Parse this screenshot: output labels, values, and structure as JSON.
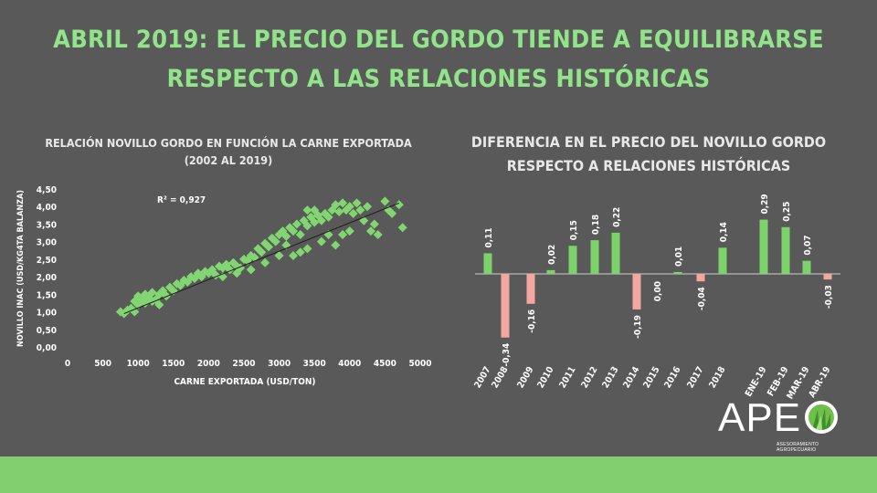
{
  "slide": {
    "title_line1": "ABRIL 2019: EL PRECIO DEL GORDO TIENDE A EQUILIBRARSE",
    "title_line2": "RESPECTO A LAS RELACIONES HISTÓRICAS"
  },
  "logo": {
    "text": "APE",
    "subtitle": "ASESORAMIENTO AGROPECUARIO"
  },
  "colors": {
    "title": "#92e48a",
    "positive": "#7cd36a",
    "negative": "#f4a6a0",
    "footer": "#82cf6f"
  },
  "chart_data": [
    {
      "type": "scatter",
      "title": "RELACIÓN NOVILLO GORDO EN FUNCIÓN LA CARNE EXPORTADA",
      "subtitle": "(2002 AL 2019)",
      "xlabel": "CARNE EXPORTADA (USD/TON)",
      "ylabel": "NOVILLO INAC (USD/KG4TA BALANZA)",
      "xlim": [
        0,
        5000
      ],
      "ylim": [
        0,
        4.5
      ],
      "x_ticks": [
        "0",
        "500",
        "1000",
        "1500",
        "2000",
        "2500",
        "3000",
        "3500",
        "4000",
        "4500",
        "5000"
      ],
      "y_ticks": [
        "0,00",
        "0,50",
        "1,00",
        "1,50",
        "2,00",
        "2,50",
        "3,00",
        "3,50",
        "4,00",
        "4,50"
      ],
      "annotation": "R² = 0,927",
      "trendline": {
        "x": [
          800,
          4700
        ],
        "y": [
          0.95,
          4.1
        ]
      },
      "points": [
        [
          750,
          1.0
        ],
        [
          800,
          0.95
        ],
        [
          850,
          1.05
        ],
        [
          900,
          1.1
        ],
        [
          950,
          1.0
        ],
        [
          950,
          1.3
        ],
        [
          1000,
          1.2
        ],
        [
          1000,
          1.45
        ],
        [
          1050,
          1.35
        ],
        [
          1100,
          1.5
        ],
        [
          1100,
          1.25
        ],
        [
          1150,
          1.4
        ],
        [
          1200,
          1.55
        ],
        [
          1250,
          1.35
        ],
        [
          1300,
          1.5
        ],
        [
          1300,
          1.2
        ],
        [
          1350,
          1.6
        ],
        [
          1400,
          1.45
        ],
        [
          1450,
          1.7
        ],
        [
          1500,
          1.6
        ],
        [
          1550,
          1.8
        ],
        [
          1600,
          1.75
        ],
        [
          1650,
          1.9
        ],
        [
          1700,
          1.85
        ],
        [
          1750,
          2.0
        ],
        [
          1800,
          1.95
        ],
        [
          1850,
          2.1
        ],
        [
          1900,
          2.0
        ],
        [
          1950,
          2.15
        ],
        [
          2000,
          2.1
        ],
        [
          2050,
          2.2
        ],
        [
          2100,
          2.05
        ],
        [
          2150,
          2.3
        ],
        [
          2200,
          2.25
        ],
        [
          2250,
          2.35
        ],
        [
          2300,
          2.2
        ],
        [
          2350,
          2.4
        ],
        [
          2400,
          2.3
        ],
        [
          2450,
          2.25
        ],
        [
          2500,
          2.5
        ],
        [
          2550,
          2.45
        ],
        [
          2600,
          2.6
        ],
        [
          2650,
          2.55
        ],
        [
          2700,
          2.8
        ],
        [
          2750,
          2.7
        ],
        [
          2800,
          2.95
        ],
        [
          2850,
          2.85
        ],
        [
          2900,
          3.1
        ],
        [
          2950,
          3.0
        ],
        [
          3000,
          3.2
        ],
        [
          3000,
          2.6
        ],
        [
          3050,
          3.3
        ],
        [
          3100,
          3.15
        ],
        [
          3150,
          3.4
        ],
        [
          3200,
          3.3
        ],
        [
          3250,
          3.5
        ],
        [
          3300,
          3.2
        ],
        [
          3350,
          3.6
        ],
        [
          3400,
          3.45
        ],
        [
          3450,
          3.7
        ],
        [
          3500,
          3.55
        ],
        [
          3550,
          3.75
        ],
        [
          3600,
          3.6
        ],
        [
          3650,
          3.8
        ],
        [
          3700,
          3.7
        ],
        [
          3750,
          3.9
        ],
        [
          3800,
          4.05
        ],
        [
          3850,
          3.85
        ],
        [
          3900,
          4.1
        ],
        [
          3950,
          3.9
        ],
        [
          4000,
          4.0
        ],
        [
          4050,
          3.8
        ],
        [
          4100,
          4.1
        ],
        [
          4150,
          3.9
        ],
        [
          4200,
          3.6
        ],
        [
          4250,
          4.0
        ],
        [
          4300,
          3.3
        ],
        [
          4350,
          3.5
        ],
        [
          4400,
          3.2
        ],
        [
          4500,
          4.15
        ],
        [
          4550,
          3.9
        ],
        [
          4600,
          3.8
        ],
        [
          4700,
          4.05
        ],
        [
          4750,
          3.4
        ],
        [
          3200,
          2.6
        ],
        [
          3400,
          2.8
        ],
        [
          3600,
          3.0
        ],
        [
          3800,
          2.9
        ],
        [
          3900,
          3.2
        ],
        [
          2800,
          2.4
        ],
        [
          2600,
          2.2
        ],
        [
          3100,
          2.9
        ],
        [
          3300,
          2.7
        ],
        [
          3700,
          3.2
        ],
        [
          4000,
          3.3
        ],
        [
          2400,
          2.1
        ],
        [
          2200,
          2.0
        ],
        [
          1200,
          1.3
        ],
        [
          1000,
          1.4
        ],
        [
          3500,
          3.9
        ],
        [
          3400,
          3.9
        ]
      ]
    },
    {
      "type": "bar",
      "title": "DIFERENCIA EN EL PRECIO DEL NOVILLO GORDO",
      "subtitle": "RESPECTO A RELACIONES HISTÓRICAS",
      "categories": [
        "2007",
        "2008",
        "2009",
        "2010",
        "2011",
        "2012",
        "2013",
        "2014",
        "2015",
        "2016",
        "2017",
        "2018",
        "ENE-19",
        "FEB-19",
        "MAR-19",
        "ABR-19"
      ],
      "values": [
        0.11,
        -0.34,
        -0.16,
        0.02,
        0.15,
        0.18,
        0.22,
        -0.19,
        0.0,
        0.01,
        -0.04,
        0.14,
        0.29,
        0.25,
        0.07,
        -0.03
      ],
      "labels": [
        "0,11",
        "-0,34",
        "-0,16",
        "0,02",
        "0,15",
        "0,18",
        "0,22",
        "-0,19",
        "0,00",
        "0,01",
        "-0,04",
        "0,14",
        "0,29",
        "0,25",
        "0,07",
        "-0,03"
      ]
    }
  ]
}
